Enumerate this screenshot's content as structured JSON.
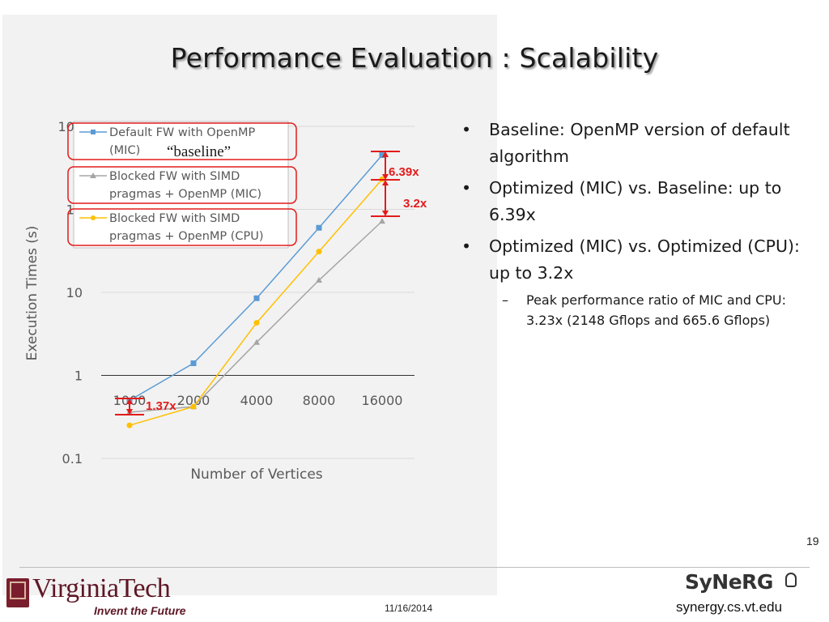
{
  "slide": {
    "title": "Performance Evaluation :  Scalability",
    "page_number": "19",
    "date": "11/16/2014",
    "footer": {
      "logo_name": "VirginiaTech",
      "logo_tagline": "Invent the Future",
      "lab_logo": "SyNeRG",
      "lab_url": "synergy.cs.vt.edu"
    }
  },
  "bullets": [
    {
      "text": "Baseline: OpenMP version of default algorithm"
    },
    {
      "text": "Optimized (MIC) vs. Baseline: up to 6.39x"
    },
    {
      "text": "Optimized (MIC) vs. Optimized (CPU): up to 3.2x"
    }
  ],
  "sub_bullets": [
    {
      "text": "Peak performance ratio of MIC and CPU: 3.23x (2148 Gflops and 665.6 Gflops)"
    }
  ],
  "colors": {
    "blue": "#5b9bd5",
    "gray": "#a5a5a5",
    "yellow": "#ffc000",
    "red": "#e31b1b"
  },
  "chart_data": {
    "type": "line",
    "title": "",
    "xlabel": "Number of Vertices",
    "ylabel": "Execution Times (s)",
    "y_scale": "log",
    "ylim": [
      0.1,
      1000
    ],
    "grid": true,
    "categories": [
      "1000",
      "2000",
      "4000",
      "8000",
      "16000"
    ],
    "y_tick_labels": [
      "0.1",
      "1",
      "10",
      "10",
      "100"
    ],
    "series": [
      {
        "name": "Default FW with OpenMP (MIC)",
        "color": "#5b9bd5",
        "marker": "square",
        "values": [
          0.5,
          1.4,
          8.5,
          60,
          450
        ]
      },
      {
        "name": "Blocked FW with SIMD pragmas + OpenMP (MIC)",
        "color": "#a5a5a5",
        "marker": "triangle",
        "values": [
          0.36,
          0.42,
          2.5,
          14,
          72
        ]
      },
      {
        "name": "Blocked FW with SIMD pragmas + OpenMP (CPU)",
        "color": "#ffc000",
        "marker": "circle",
        "values": [
          0.25,
          0.42,
          4.3,
          31,
          230
        ]
      }
    ],
    "annotations": [
      {
        "label": "“baseline”"
      },
      {
        "label": "6.39x"
      },
      {
        "label": "3.2x"
      },
      {
        "label": "1.37x"
      }
    ]
  }
}
